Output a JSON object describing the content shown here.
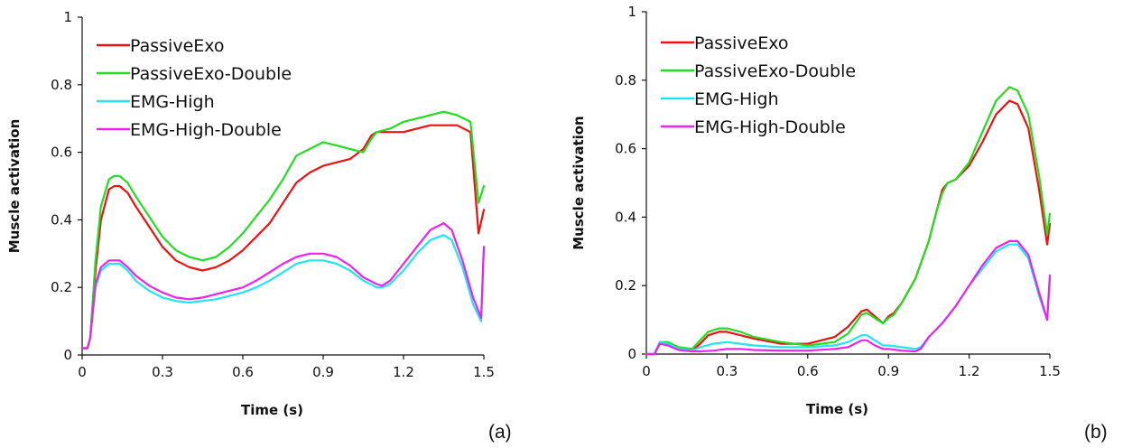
{
  "chart_data": [
    {
      "type": "line",
      "panel_label": "(a)",
      "xlabel": "Time (s)",
      "ylabel": "Muscle activation",
      "xlim": [
        0,
        1.5
      ],
      "ylim": [
        0,
        1
      ],
      "xticks": [
        "0",
        "0.3",
        "0.6",
        "0.9",
        "1.2",
        "1.5"
      ],
      "yticks": [
        "0",
        "0.2",
        "0.4",
        "0.6",
        "0.8",
        "1"
      ],
      "legend": "top-left",
      "grid": false,
      "series": [
        {
          "name": "PassiveExo",
          "color": "#ee1111",
          "x": [
            0,
            0.02,
            0.03,
            0.05,
            0.07,
            0.1,
            0.12,
            0.14,
            0.17,
            0.2,
            0.25,
            0.3,
            0.35,
            0.4,
            0.45,
            0.5,
            0.55,
            0.6,
            0.65,
            0.7,
            0.75,
            0.8,
            0.85,
            0.9,
            0.95,
            1.0,
            1.05,
            1.08,
            1.1,
            1.15,
            1.2,
            1.25,
            1.3,
            1.35,
            1.4,
            1.45,
            1.48,
            1.5
          ],
          "values": [
            0.02,
            0.02,
            0.05,
            0.25,
            0.4,
            0.49,
            0.5,
            0.5,
            0.48,
            0.44,
            0.38,
            0.32,
            0.28,
            0.26,
            0.25,
            0.26,
            0.28,
            0.31,
            0.35,
            0.39,
            0.45,
            0.51,
            0.54,
            0.56,
            0.57,
            0.58,
            0.61,
            0.65,
            0.66,
            0.66,
            0.66,
            0.67,
            0.68,
            0.68,
            0.68,
            0.66,
            0.36,
            0.43
          ]
        },
        {
          "name": "PassiveExo-Double",
          "color": "#22dd22",
          "x": [
            0,
            0.02,
            0.03,
            0.05,
            0.07,
            0.1,
            0.12,
            0.14,
            0.17,
            0.2,
            0.25,
            0.3,
            0.35,
            0.4,
            0.45,
            0.5,
            0.55,
            0.6,
            0.65,
            0.7,
            0.75,
            0.8,
            0.85,
            0.9,
            0.95,
            1.0,
            1.05,
            1.08,
            1.1,
            1.15,
            1.2,
            1.25,
            1.3,
            1.35,
            1.4,
            1.45,
            1.48,
            1.5
          ],
          "values": [
            0.02,
            0.02,
            0.05,
            0.28,
            0.44,
            0.52,
            0.53,
            0.53,
            0.51,
            0.47,
            0.41,
            0.35,
            0.31,
            0.29,
            0.28,
            0.29,
            0.32,
            0.36,
            0.41,
            0.46,
            0.52,
            0.59,
            0.61,
            0.63,
            0.62,
            0.61,
            0.6,
            0.64,
            0.66,
            0.67,
            0.69,
            0.7,
            0.71,
            0.72,
            0.71,
            0.69,
            0.45,
            0.5
          ]
        },
        {
          "name": "EMG-High",
          "color": "#22e5f0",
          "x": [
            0,
            0.02,
            0.03,
            0.05,
            0.07,
            0.1,
            0.12,
            0.14,
            0.17,
            0.2,
            0.25,
            0.3,
            0.35,
            0.4,
            0.45,
            0.5,
            0.55,
            0.6,
            0.65,
            0.7,
            0.75,
            0.8,
            0.85,
            0.9,
            0.95,
            1.0,
            1.05,
            1.1,
            1.12,
            1.15,
            1.2,
            1.25,
            1.3,
            1.35,
            1.38,
            1.42,
            1.46,
            1.49,
            1.5
          ],
          "values": [
            0.02,
            0.02,
            0.05,
            0.2,
            0.25,
            0.27,
            0.27,
            0.27,
            0.25,
            0.22,
            0.19,
            0.17,
            0.16,
            0.155,
            0.16,
            0.165,
            0.175,
            0.185,
            0.2,
            0.22,
            0.245,
            0.27,
            0.28,
            0.28,
            0.27,
            0.25,
            0.22,
            0.2,
            0.2,
            0.21,
            0.25,
            0.3,
            0.34,
            0.355,
            0.34,
            0.26,
            0.15,
            0.1,
            0.32
          ]
        },
        {
          "name": "EMG-High-Double",
          "color": "#ee22ee",
          "x": [
            0,
            0.02,
            0.03,
            0.05,
            0.07,
            0.1,
            0.12,
            0.14,
            0.17,
            0.2,
            0.25,
            0.3,
            0.35,
            0.4,
            0.45,
            0.5,
            0.55,
            0.6,
            0.65,
            0.7,
            0.75,
            0.8,
            0.85,
            0.9,
            0.95,
            1.0,
            1.05,
            1.1,
            1.12,
            1.15,
            1.2,
            1.25,
            1.3,
            1.35,
            1.38,
            1.42,
            1.46,
            1.49,
            1.5
          ],
          "values": [
            0.02,
            0.02,
            0.05,
            0.21,
            0.26,
            0.28,
            0.28,
            0.28,
            0.26,
            0.235,
            0.205,
            0.185,
            0.17,
            0.165,
            0.17,
            0.18,
            0.19,
            0.2,
            0.22,
            0.245,
            0.27,
            0.29,
            0.3,
            0.3,
            0.29,
            0.265,
            0.23,
            0.21,
            0.205,
            0.22,
            0.27,
            0.32,
            0.37,
            0.39,
            0.37,
            0.28,
            0.17,
            0.11,
            0.32
          ]
        }
      ]
    },
    {
      "type": "line",
      "panel_label": "(b)",
      "xlabel": "Time (s)",
      "ylabel": "Muscle activation",
      "xlim": [
        0,
        1.5
      ],
      "ylim": [
        0,
        1
      ],
      "xticks": [
        "0",
        "0.3",
        "0.6",
        "0.9",
        "1.2",
        "1.5"
      ],
      "yticks": [
        "0",
        "0.2",
        "0.4",
        "0.6",
        "0.8",
        "1"
      ],
      "legend": "top-left",
      "grid": false,
      "series": [
        {
          "name": "PassiveExo",
          "color": "#ee1111",
          "x": [
            0,
            0.03,
            0.05,
            0.08,
            0.12,
            0.17,
            0.2,
            0.23,
            0.27,
            0.3,
            0.35,
            0.4,
            0.5,
            0.6,
            0.7,
            0.75,
            0.8,
            0.82,
            0.85,
            0.88,
            0.9,
            0.92,
            0.95,
            1.0,
            1.05,
            1.08,
            1.1,
            1.12,
            1.15,
            1.2,
            1.25,
            1.3,
            1.35,
            1.38,
            1.42,
            1.46,
            1.49,
            1.5
          ],
          "values": [
            0,
            0,
            0.03,
            0.03,
            0.015,
            0.01,
            0.03,
            0.055,
            0.065,
            0.065,
            0.055,
            0.045,
            0.03,
            0.03,
            0.05,
            0.08,
            0.125,
            0.13,
            0.11,
            0.09,
            0.11,
            0.12,
            0.15,
            0.22,
            0.33,
            0.42,
            0.48,
            0.5,
            0.51,
            0.55,
            0.62,
            0.7,
            0.74,
            0.73,
            0.66,
            0.48,
            0.32,
            0.38
          ]
        },
        {
          "name": "PassiveExo-Double",
          "color": "#22dd22",
          "x": [
            0,
            0.03,
            0.05,
            0.08,
            0.12,
            0.17,
            0.2,
            0.23,
            0.27,
            0.3,
            0.35,
            0.4,
            0.5,
            0.6,
            0.7,
            0.75,
            0.8,
            0.82,
            0.85,
            0.88,
            0.9,
            0.92,
            0.95,
            1.0,
            1.05,
            1.08,
            1.1,
            1.12,
            1.15,
            1.2,
            1.25,
            1.3,
            1.35,
            1.38,
            1.42,
            1.46,
            1.49,
            1.5
          ],
          "values": [
            0,
            0,
            0.035,
            0.035,
            0.02,
            0.015,
            0.04,
            0.065,
            0.075,
            0.075,
            0.065,
            0.05,
            0.035,
            0.025,
            0.035,
            0.06,
            0.115,
            0.12,
            0.105,
            0.09,
            0.105,
            0.115,
            0.15,
            0.22,
            0.33,
            0.42,
            0.47,
            0.5,
            0.51,
            0.56,
            0.65,
            0.74,
            0.78,
            0.77,
            0.7,
            0.52,
            0.35,
            0.41
          ]
        },
        {
          "name": "EMG-High",
          "color": "#22e5f0",
          "x": [
            0,
            0.03,
            0.05,
            0.08,
            0.12,
            0.17,
            0.2,
            0.25,
            0.3,
            0.35,
            0.4,
            0.5,
            0.6,
            0.7,
            0.75,
            0.8,
            0.82,
            0.85,
            0.88,
            0.9,
            0.95,
            1.0,
            1.02,
            1.05,
            1.1,
            1.15,
            1.2,
            1.25,
            1.3,
            1.35,
            1.38,
            1.42,
            1.46,
            1.49,
            1.5
          ],
          "values": [
            0,
            0,
            0.035,
            0.03,
            0.015,
            0.01,
            0.02,
            0.03,
            0.035,
            0.03,
            0.025,
            0.02,
            0.02,
            0.025,
            0.035,
            0.055,
            0.055,
            0.04,
            0.025,
            0.025,
            0.02,
            0.015,
            0.02,
            0.05,
            0.09,
            0.14,
            0.2,
            0.25,
            0.3,
            0.32,
            0.32,
            0.28,
            0.17,
            0.1,
            0.22
          ]
        },
        {
          "name": "EMG-High-Double",
          "color": "#ee22ee",
          "x": [
            0,
            0.03,
            0.05,
            0.08,
            0.12,
            0.17,
            0.2,
            0.25,
            0.3,
            0.35,
            0.4,
            0.5,
            0.6,
            0.7,
            0.75,
            0.8,
            0.82,
            0.85,
            0.88,
            0.9,
            0.95,
            1.0,
            1.02,
            1.05,
            1.1,
            1.15,
            1.2,
            1.25,
            1.3,
            1.35,
            1.38,
            1.42,
            1.46,
            1.49,
            1.5
          ],
          "values": [
            0,
            0,
            0.03,
            0.025,
            0.012,
            0.008,
            0.008,
            0.01,
            0.015,
            0.015,
            0.012,
            0.01,
            0.01,
            0.015,
            0.02,
            0.04,
            0.04,
            0.025,
            0.015,
            0.015,
            0.01,
            0.008,
            0.015,
            0.05,
            0.09,
            0.14,
            0.2,
            0.26,
            0.31,
            0.33,
            0.33,
            0.29,
            0.18,
            0.1,
            0.23
          ]
        }
      ]
    }
  ]
}
